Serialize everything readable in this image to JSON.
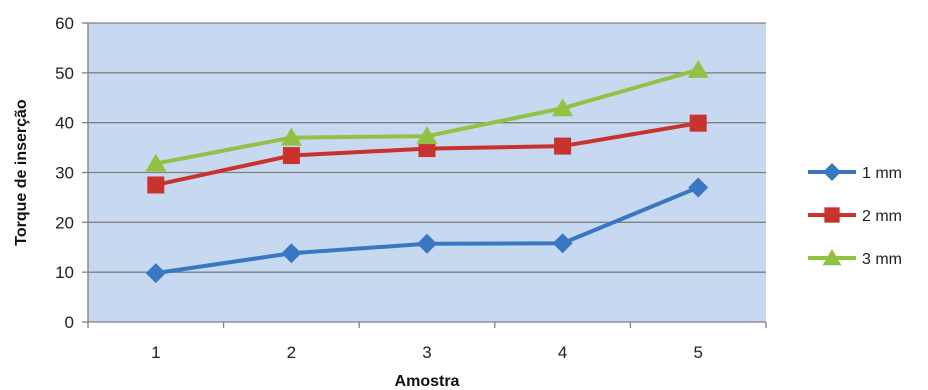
{
  "chart_data": {
    "type": "line",
    "x": [
      1,
      2,
      3,
      4,
      5
    ],
    "categories": [
      "1",
      "2",
      "3",
      "4",
      "5"
    ],
    "series": [
      {
        "name": "1 mm",
        "values": [
          9.8,
          13.8,
          15.7,
          15.8,
          27.0
        ],
        "color": "#3a77c2",
        "marker": "diamond"
      },
      {
        "name": "2 mm",
        "values": [
          27.5,
          33.4,
          34.8,
          35.3,
          39.9
        ],
        "color": "#c9332e",
        "marker": "square"
      },
      {
        "name": "3 mm",
        "values": [
          31.8,
          37.0,
          37.3,
          42.9,
          50.6
        ],
        "color": "#92c244",
        "marker": "triangle"
      }
    ],
    "xlabel": "Amostra",
    "ylabel": "Torque de inserção",
    "ylim": [
      0,
      60
    ],
    "yticks": [
      0,
      10,
      20,
      30,
      40,
      50,
      60
    ],
    "grid": true,
    "legend_position": "right",
    "plot_background": "#c6d9f0"
  }
}
